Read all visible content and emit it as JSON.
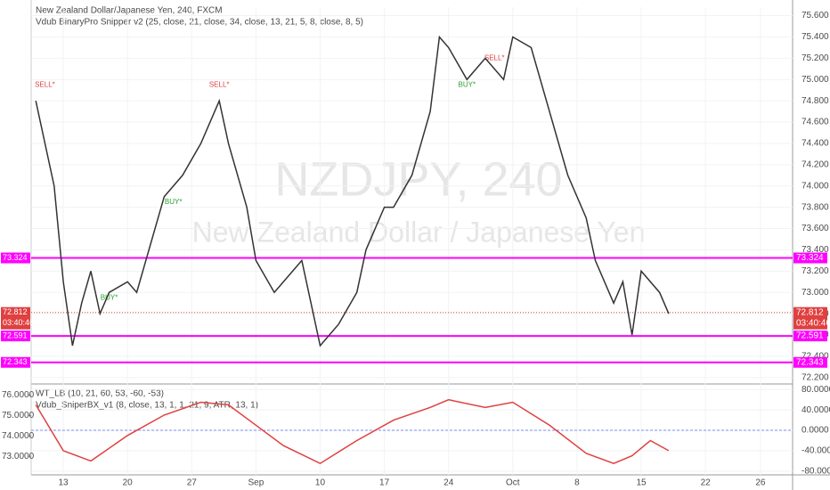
{
  "chart_data": [
    {
      "type": "line",
      "title": "New Zealand Dollar/Japanese Yen, 240, FXCM",
      "subtitle": "Vdub BinaryPro Snipper v2 (25, close, 21, close, 34, close, 13, 21, 5, 8, close, 8, 5)",
      "watermark": "NZDJPY, 240",
      "watermark_subtitle": "New Zealand Dollar / Japanese Yen",
      "x": [
        -3,
        -1,
        0,
        1,
        2,
        3,
        4,
        5,
        7,
        8,
        10,
        11,
        13,
        15,
        17,
        18,
        20,
        21,
        23,
        24,
        26,
        27,
        28,
        30,
        32,
        33,
        35,
        36,
        38,
        40,
        41,
        42,
        44,
        46,
        48,
        49,
        51,
        53,
        55,
        57,
        58,
        60,
        61,
        62,
        63,
        65,
        66
      ],
      "values": [
        74.8,
        74.0,
        73.1,
        72.5,
        72.9,
        73.2,
        72.8,
        73.0,
        73.1,
        73.0,
        73.6,
        73.9,
        74.1,
        74.4,
        74.8,
        74.4,
        73.8,
        73.3,
        73.0,
        73.1,
        73.3,
        72.9,
        72.5,
        72.7,
        73.0,
        73.4,
        73.8,
        73.8,
        74.1,
        74.7,
        75.4,
        75.3,
        75.0,
        75.2,
        75.0,
        75.4,
        75.3,
        74.7,
        74.1,
        73.7,
        73.3,
        72.9,
        73.1,
        72.6,
        73.2,
        73.0,
        72.8
      ],
      "color": "#333333",
      "levels": [
        73.324,
        72.591,
        72.343
      ],
      "level_color": "#ff00ff",
      "last_price": 72.812,
      "countdown": "03:40:46",
      "annotations": [
        {
          "text": "SELL*",
          "x": -2,
          "y": 74.95
        },
        {
          "text": "SELL*",
          "x": 17,
          "y": 74.95
        },
        {
          "text": "SELL*",
          "x": 47,
          "y": 75.2
        },
        {
          "text": "BUY*",
          "x": 12,
          "y": 73.85
        },
        {
          "text": "BUY*",
          "x": 5,
          "y": 72.95
        },
        {
          "text": "BUY*",
          "x": 44,
          "y": 74.95
        }
      ],
      "xlim": [
        -3.5,
        79.5
      ],
      "xticks": [
        {
          "value": 0,
          "label": "13"
        },
        {
          "value": 7,
          "label": "20"
        },
        {
          "value": 14,
          "label": "27"
        },
        {
          "value": 21,
          "label": "Sep"
        },
        {
          "value": 28,
          "label": "10"
        },
        {
          "value": 35,
          "label": "17"
        },
        {
          "value": 42,
          "label": "24"
        },
        {
          "value": 49,
          "label": "Oct"
        },
        {
          "value": 56,
          "label": "8"
        },
        {
          "value": 63,
          "label": "15"
        },
        {
          "value": 70,
          "label": "22"
        },
        {
          "value": 76,
          "label": "26"
        }
      ],
      "ylim": [
        72.14,
        75.68
      ],
      "yticks": [
        {
          "value": 72.2,
          "label": "72.200"
        },
        {
          "value": 72.4,
          "label": "72.400"
        },
        {
          "value": 72.6,
          "label": "72.600"
        },
        {
          "value": 72.8,
          "label": "72.800"
        },
        {
          "value": 73.0,
          "label": "73.000"
        },
        {
          "value": 73.2,
          "label": "73.200"
        },
        {
          "value": 73.4,
          "label": "73.400"
        },
        {
          "value": 73.6,
          "label": "73.600"
        },
        {
          "value": 73.8,
          "label": "73.800"
        },
        {
          "value": 74.0,
          "label": "74.000"
        },
        {
          "value": 74.2,
          "label": "74.200"
        },
        {
          "value": 74.4,
          "label": "74.400"
        },
        {
          "value": 74.6,
          "label": "74.600"
        },
        {
          "value": 74.8,
          "label": "74.800"
        },
        {
          "value": 75.0,
          "label": "75.000"
        },
        {
          "value": 75.2,
          "label": "75.200"
        },
        {
          "value": 75.4,
          "label": "75.400"
        },
        {
          "value": 75.6,
          "label": "75.600"
        }
      ],
      "grid": true
    },
    {
      "type": "line",
      "title": "WT_LB (10, 21, 60, 53, -60, -53)",
      "subtitle": "Vdub_SniperBX_v1 (8, close, 13, 1, 1, 21, 9, ATR, 13, 1)",
      "x": [
        -3,
        0,
        3,
        7,
        11,
        15,
        18,
        21,
        24,
        28,
        32,
        36,
        40,
        42,
        46,
        49,
        53,
        57,
        60,
        62,
        64,
        66
      ],
      "values": [
        50,
        -40,
        -60,
        -10,
        30,
        55,
        50,
        10,
        -30,
        -65,
        -20,
        20,
        45,
        60,
        45,
        55,
        10,
        -45,
        -65,
        -50,
        -20,
        -40
      ],
      "color": "#e04040",
      "ylim": [
        -87.3,
        90.9
      ],
      "yticks": [
        {
          "value": 80,
          "label": "80.0000"
        },
        {
          "value": 40,
          "label": "40.0000"
        },
        {
          "value": 0,
          "label": "0.0000"
        },
        {
          "value": -40,
          "label": "-40.0000"
        },
        {
          "value": -80,
          "label": "-80.0000"
        }
      ],
      "y2lim": [
        72.09,
        76.55
      ],
      "y2ticks": [
        {
          "value": 76,
          "label": "76.0000"
        },
        {
          "value": 75,
          "label": "75.0000"
        },
        {
          "value": 74,
          "label": "74.0000"
        },
        {
          "value": 73,
          "label": "73.0000"
        }
      ]
    }
  ]
}
